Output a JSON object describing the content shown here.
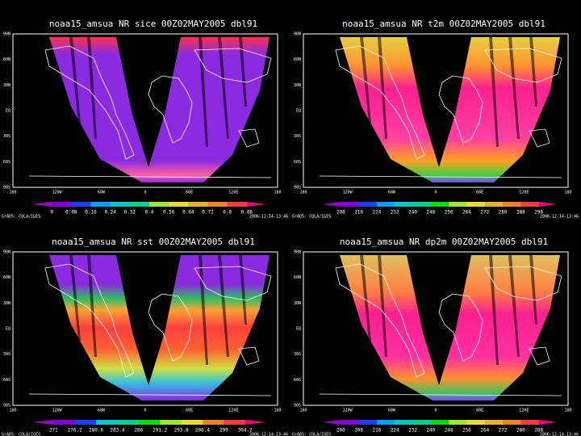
{
  "panels": [
    {
      "title": "noaa15_amsua NR sice 00Z02MAY2005 dbl91",
      "colorbar_labels": [
        "0",
        "0.08",
        "0.16",
        "0.24",
        "0.32",
        "0.4",
        "0.56",
        "0.64",
        "0.72",
        "0.8",
        "0.88"
      ]
    },
    {
      "title": "noaa15_amsua NR t2m 00Z02MAY2005 dbl91",
      "colorbar_labels": [
        "208",
        "216",
        "224",
        "232",
        "240",
        "248",
        "256",
        "264",
        "272",
        "280",
        "288",
        "296"
      ]
    },
    {
      "title": "noaa15_amsua NR sst 00Z02MAY2005 dbl91",
      "colorbar_labels": [
        "271",
        "276.2",
        "280.6",
        "283.4",
        "286",
        "291.2",
        "293.8",
        "296.4",
        "299",
        "304.2"
      ]
    },
    {
      "title": "noaa15_amsua NR dp2m 00Z02MAY2005 dbl91",
      "colorbar_labels": [
        "200",
        "208",
        "216",
        "224",
        "232",
        "240",
        "248",
        "256",
        "264",
        "272",
        "280",
        "288"
      ]
    }
  ],
  "lat_labels": [
    "90N",
    "60N",
    "30N",
    "EQ",
    "30S",
    "60S",
    "90S"
  ],
  "lon_labels": [
    "180",
    "120W",
    "60W",
    "0",
    "60E",
    "120E",
    "180"
  ],
  "footer_left": "GrADS: COLA/IGES",
  "footer_right": "2006-12-14-13:46"
}
